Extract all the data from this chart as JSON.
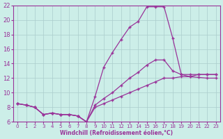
{
  "xlabel": "Windchill (Refroidissement éolien,°C)",
  "bg_color": "#cceee8",
  "grid_color": "#aacccc",
  "line_color": "#993399",
  "xlim": [
    -0.5,
    23.5
  ],
  "ylim": [
    6,
    22
  ],
  "yticks": [
    6,
    8,
    10,
    12,
    14,
    16,
    18,
    20,
    22
  ],
  "xticks": [
    0,
    1,
    2,
    3,
    4,
    5,
    6,
    7,
    8,
    9,
    10,
    11,
    12,
    13,
    14,
    15,
    16,
    17,
    18,
    19,
    20,
    21,
    22,
    23
  ],
  "line1_x": [
    0,
    1,
    2,
    3,
    4,
    5,
    6,
    7,
    8,
    9,
    10,
    11,
    12,
    13,
    14,
    15,
    16,
    17,
    18,
    19,
    20,
    21,
    22,
    23
  ],
  "line1_y": [
    8.5,
    8.3,
    8.0,
    7.0,
    7.2,
    7.0,
    7.0,
    6.8,
    6.0,
    9.5,
    13.5,
    15.5,
    17.3,
    19.0,
    19.8,
    21.8,
    21.8,
    21.8,
    17.5,
    12.5,
    12.2,
    12.1,
    12.0,
    12.0
  ],
  "line2_x": [
    0,
    1,
    2,
    3,
    4,
    5,
    6,
    7,
    8,
    9,
    10,
    11,
    12,
    13,
    14,
    15,
    16,
    17,
    18,
    19,
    20,
    21,
    22,
    23
  ],
  "line2_y": [
    8.5,
    8.3,
    8.0,
    7.0,
    7.2,
    7.0,
    7.0,
    6.8,
    6.0,
    8.3,
    9.2,
    10.0,
    11.0,
    12.0,
    12.8,
    13.8,
    14.5,
    14.5,
    13.0,
    12.5,
    12.5,
    12.5,
    12.5,
    12.5
  ],
  "line3_x": [
    0,
    1,
    2,
    3,
    4,
    5,
    6,
    7,
    8,
    9,
    10,
    11,
    12,
    13,
    14,
    15,
    16,
    17,
    18,
    19,
    20,
    21,
    22,
    23
  ],
  "line3_y": [
    8.5,
    8.3,
    8.0,
    7.0,
    7.2,
    7.0,
    7.0,
    6.8,
    6.0,
    8.0,
    8.5,
    9.0,
    9.5,
    10.0,
    10.5,
    11.0,
    11.5,
    12.0,
    12.0,
    12.2,
    12.2,
    12.5,
    12.5,
    12.5
  ]
}
